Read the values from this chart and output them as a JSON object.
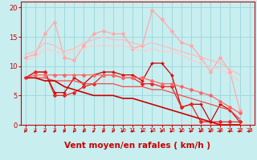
{
  "title": "",
  "xlabel": "Vent moyen/en rafales ( km/h )",
  "bg_color": "#c8eef0",
  "grid_color": "#a0d8dc",
  "xlim": [
    -0.5,
    23.5
  ],
  "ylim": [
    0,
    21
  ],
  "xticks": [
    0,
    1,
    2,
    3,
    4,
    5,
    6,
    7,
    8,
    9,
    10,
    11,
    12,
    13,
    14,
    15,
    16,
    17,
    18,
    19,
    20,
    21,
    22,
    23
  ],
  "yticks": [
    0,
    5,
    10,
    15,
    20
  ],
  "lines": [
    {
      "x": [
        0,
        1,
        2,
        3,
        4,
        5,
        6,
        7,
        8,
        9,
        10,
        11,
        12,
        13,
        14,
        15,
        16,
        17,
        18,
        19,
        20,
        21,
        22
      ],
      "y": [
        11.5,
        12.0,
        15.5,
        17.5,
        11.5,
        11.0,
        13.5,
        15.5,
        16.0,
        15.5,
        15.5,
        13.0,
        13.5,
        19.5,
        18.0,
        16.0,
        14.0,
        13.5,
        11.5,
        9.0,
        11.5,
        9.0,
        2.5
      ],
      "color": "#ffaaaa",
      "lw": 0.9,
      "marker": "D",
      "ms": 2.0
    },
    {
      "x": [
        0,
        1,
        2,
        3,
        4,
        5,
        6,
        7,
        8,
        9,
        10,
        11,
        12,
        13,
        14,
        15,
        16,
        17,
        18,
        19,
        20,
        21,
        22
      ],
      "y": [
        12.0,
        12.5,
        14.0,
        13.5,
        12.5,
        13.0,
        14.0,
        14.5,
        15.0,
        14.5,
        14.5,
        14.0,
        13.5,
        14.0,
        13.5,
        13.0,
        12.5,
        12.0,
        11.5,
        11.0,
        10.5,
        9.5,
        8.5
      ],
      "color": "#ffbbbb",
      "lw": 0.9,
      "marker": null,
      "ms": 0
    },
    {
      "x": [
        0,
        1,
        2,
        3,
        4,
        5,
        6,
        7,
        8,
        9,
        10,
        11,
        12,
        13,
        14,
        15,
        16,
        17,
        18,
        19,
        20,
        21,
        22
      ],
      "y": [
        11.0,
        11.5,
        13.0,
        12.5,
        12.0,
        12.5,
        13.0,
        13.5,
        13.5,
        13.5,
        13.5,
        13.0,
        12.5,
        13.0,
        12.5,
        12.5,
        12.0,
        11.0,
        10.5,
        10.0,
        9.5,
        8.5,
        7.5
      ],
      "color": "#ffcccc",
      "lw": 0.9,
      "marker": null,
      "ms": 0
    },
    {
      "x": [
        0,
        1,
        2,
        3,
        4,
        5,
        6,
        7,
        8,
        9,
        10,
        11,
        12,
        13,
        14,
        15,
        16,
        17,
        18,
        19,
        20,
        21,
        22
      ],
      "y": [
        8.0,
        9.0,
        9.0,
        5.5,
        5.5,
        8.0,
        7.0,
        8.5,
        9.0,
        9.0,
        8.5,
        8.5,
        7.5,
        10.5,
        10.5,
        8.5,
        3.0,
        3.5,
        3.5,
        0.5,
        3.5,
        2.5,
        0.5
      ],
      "color": "#cc0000",
      "lw": 0.9,
      "marker": "+",
      "ms": 3.5
    },
    {
      "x": [
        0,
        1,
        2,
        3,
        4,
        5,
        6,
        7,
        8,
        9,
        10,
        11,
        12,
        13,
        14,
        15,
        16,
        17,
        18,
        19,
        20,
        21,
        22
      ],
      "y": [
        8.0,
        9.0,
        9.0,
        5.0,
        5.0,
        5.5,
        6.5,
        7.0,
        8.5,
        8.5,
        8.0,
        8.0,
        7.0,
        7.0,
        6.5,
        6.5,
        3.0,
        3.5,
        0.5,
        0.5,
        0.5,
        0.5,
        0.5
      ],
      "color": "#ee2222",
      "lw": 0.9,
      "marker": "D",
      "ms": 2.0
    },
    {
      "x": [
        0,
        1,
        2,
        3,
        4,
        5,
        6,
        7,
        8,
        9,
        10,
        11,
        12,
        13,
        14,
        15,
        16,
        17,
        18,
        19,
        20,
        21,
        22
      ],
      "y": [
        8.0,
        8.5,
        8.5,
        8.5,
        8.5,
        8.5,
        8.5,
        8.5,
        8.5,
        8.5,
        8.0,
        8.0,
        8.0,
        7.5,
        7.0,
        7.0,
        6.5,
        6.0,
        5.5,
        5.0,
        4.0,
        3.0,
        2.0
      ],
      "color": "#ff6666",
      "lw": 0.9,
      "marker": "D",
      "ms": 2.0
    },
    {
      "x": [
        0,
        1,
        2,
        3,
        4,
        5,
        6,
        7,
        8,
        9,
        10,
        11,
        12,
        13,
        14,
        15,
        16,
        17,
        18,
        19,
        20,
        21,
        22
      ],
      "y": [
        8.0,
        8.0,
        8.0,
        7.5,
        7.5,
        7.5,
        7.0,
        7.0,
        7.0,
        7.0,
        6.5,
        6.5,
        6.5,
        6.0,
        6.0,
        5.5,
        5.0,
        4.5,
        4.0,
        3.5,
        3.0,
        2.5,
        1.0
      ],
      "color": "#ff4444",
      "lw": 0.9,
      "marker": null,
      "ms": 0
    },
    {
      "x": [
        0,
        1,
        2,
        3,
        4,
        5,
        6,
        7,
        8,
        9,
        10,
        11,
        12,
        13,
        14,
        15,
        16,
        17,
        18,
        19,
        20,
        21,
        22
      ],
      "y": [
        8.0,
        8.0,
        7.5,
        7.5,
        6.5,
        6.0,
        5.5,
        5.0,
        5.0,
        5.0,
        4.5,
        4.5,
        4.0,
        3.5,
        3.0,
        2.5,
        2.0,
        1.5,
        1.0,
        0.5,
        0.0,
        0.0,
        0.0
      ],
      "color": "#cc0000",
      "lw": 1.2,
      "marker": null,
      "ms": 0
    }
  ],
  "tick_color": "#cc0000",
  "label_color": "#cc0000",
  "axis_color": "#cc0000",
  "xlabel_fontsize": 7.5,
  "tick_fontsize_x": 5.0,
  "tick_fontsize_y": 6.0
}
